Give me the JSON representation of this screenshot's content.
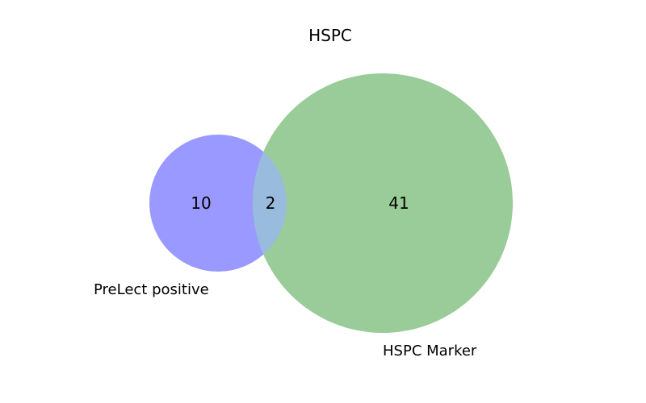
{
  "title": "HSPC",
  "sets": [
    {
      "name": "PreLect positive",
      "color": "#9999ff"
    },
    {
      "name": "HSPC Marker",
      "color": "#99cc99"
    }
  ],
  "overlap_color": "#99bbdd",
  "counts": {
    "only_a": "10",
    "both": "2",
    "only_b": "41"
  }
}
